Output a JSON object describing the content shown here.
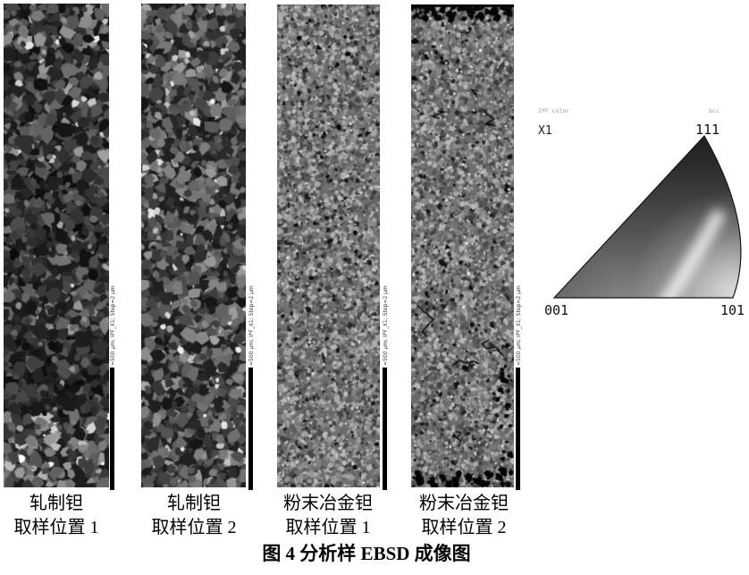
{
  "figure": {
    "title": "图 4  分析样 EBSD 成像图",
    "scale_label": "=500 µm; IPF_X1; Step=2 µm",
    "maps": [
      {
        "caption_line1": "轧制钽",
        "caption_line2": "取样位置 1",
        "texture": {
          "style": "coarse-dark",
          "seed": 11
        }
      },
      {
        "caption_line1": "轧制钽",
        "caption_line2": "取样位置 2",
        "texture": {
          "style": "coarse",
          "seed": 27
        }
      },
      {
        "caption_line1": "粉末冶金钽",
        "caption_line2": "取样位置 1",
        "texture": {
          "style": "fine",
          "seed": 63
        }
      },
      {
        "caption_line1": "粉末冶金钽",
        "caption_line2": "取样位置 2",
        "texture": {
          "style": "fine-cracked",
          "seed": 88
        }
      }
    ],
    "ipf_legend": {
      "tiny_text_left": "IPF color",
      "tiny_text_right": "bcc",
      "axis_label": "X1",
      "corner_001": "001",
      "corner_101": "101",
      "corner_111": "111"
    },
    "colors": {
      "grain_dark": "#1c1c1c",
      "grain_mid": "#8a8a8a",
      "grain_bright": "#d8d8d8",
      "scale_bar": "#000000"
    }
  }
}
